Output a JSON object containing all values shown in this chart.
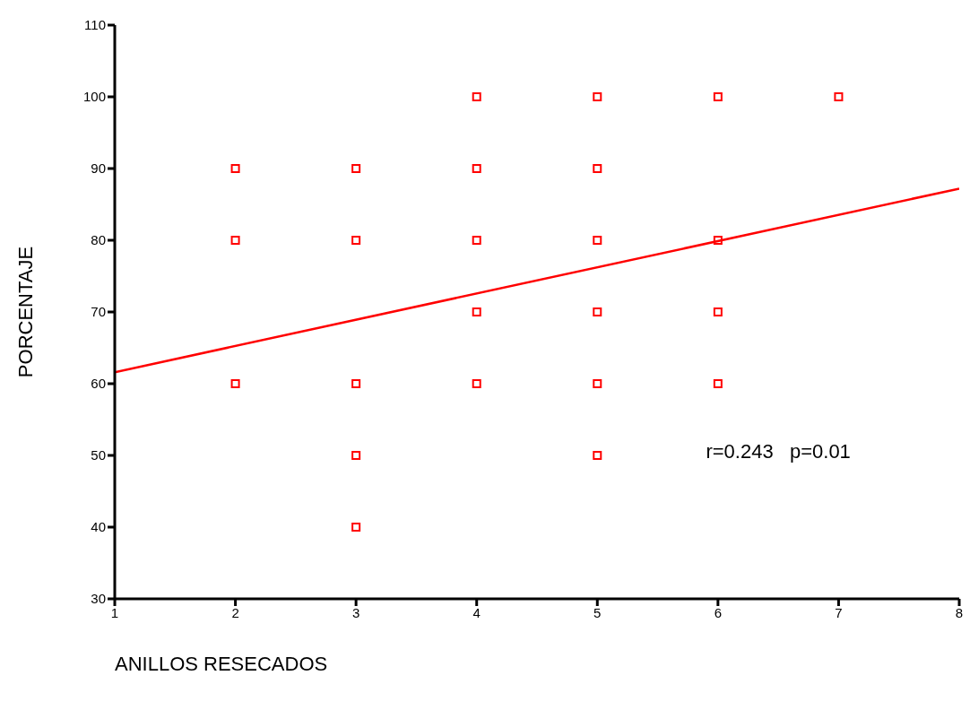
{
  "chart_data": {
    "type": "scatter",
    "xlabel": "ANILLOS RESECADOS",
    "ylabel": "PORCENTAJE",
    "annotations": [
      "r=0.243   p=0.01"
    ],
    "xlim": [
      1,
      8
    ],
    "xticks": [
      1,
      2,
      3,
      4,
      5,
      6,
      7,
      8
    ],
    "ylim": [
      30,
      110
    ],
    "yticks": [
      30,
      40,
      50,
      60,
      70,
      80,
      90,
      100,
      110
    ],
    "grid": false,
    "legend": false,
    "marker": "square",
    "line_style": "solid",
    "series": [
      {
        "type": "scatter",
        "color": "#ff0000",
        "x": [
          2,
          2,
          2,
          3,
          3,
          3,
          3,
          3,
          4,
          4,
          4,
          4,
          4,
          5,
          5,
          5,
          5,
          5,
          5,
          6,
          6,
          6,
          6,
          7
        ],
        "values": [
          90,
          80,
          60,
          90,
          80,
          60,
          50,
          40,
          100,
          90,
          80,
          70,
          60,
          100,
          90,
          80,
          70,
          60,
          50,
          100,
          80,
          70,
          60,
          100
        ]
      },
      {
        "type": "line",
        "color": "#ff0000",
        "x": [
          1,
          8
        ],
        "values": [
          61.6,
          87.2
        ],
        "marker": "none"
      }
    ]
  }
}
